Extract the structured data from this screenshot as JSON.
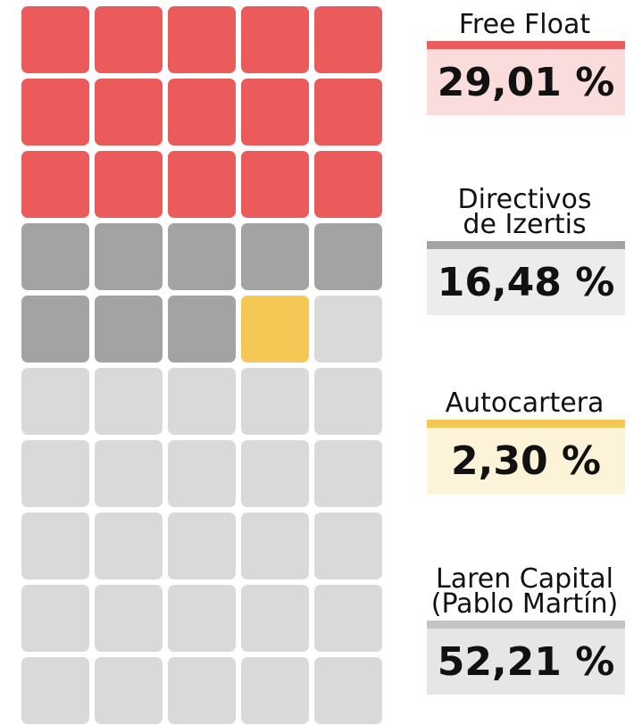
{
  "chart_data": {
    "type": "waffle",
    "series": [
      {
        "name": "Free Float",
        "color": "#ec5b5b",
        "box_color": "#fadcdc",
        "values": [
          29.01
        ],
        "value_labels": [
          "29,01 %"
        ]
      },
      {
        "name": "Directivos\nde Izertis",
        "color": "#a3a3a3",
        "box_color": "#ececec",
        "values": [
          16.48
        ],
        "value_labels": [
          "16,48 %"
        ]
      },
      {
        "name": "Autocartera",
        "color": "#f5c754",
        "box_color": "#fdf3d8",
        "values": [
          2.3
        ],
        "value_labels": [
          "2,30 %"
        ]
      },
      {
        "name": "Laren Capital\n(Pablo Martín)",
        "color": "#d9d9d9",
        "bar_color": "#c4c4c4",
        "box_color": "#e6e6e6",
        "values": [
          52.21
        ],
        "value_labels": [
          "52,21 %"
        ]
      }
    ]
  }
}
